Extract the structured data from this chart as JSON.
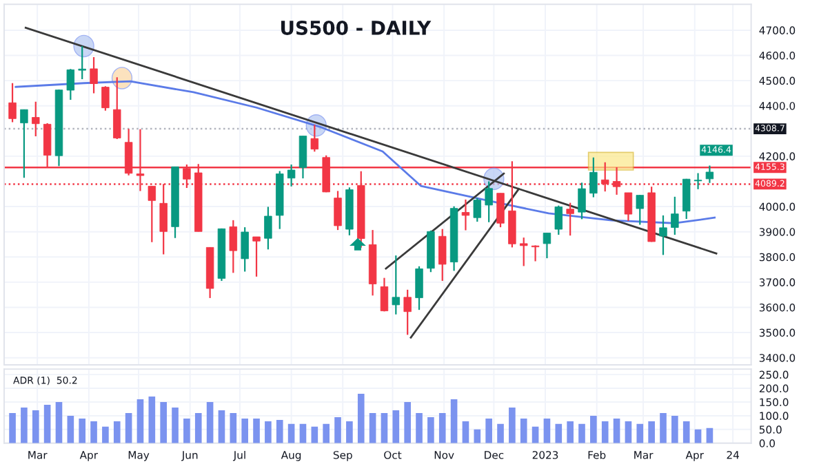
{
  "chart_data": [
    {
      "type": "candlestick",
      "title": "US500 - DAILY",
      "x": [
        "2022-02-14",
        "2022-02-21",
        "2022-02-28",
        "2022-03-07",
        "2022-03-14",
        "2022-03-21",
        "2022-03-28",
        "2022-04-04",
        "2022-04-11",
        "2022-04-18",
        "2022-04-25",
        "2022-05-02",
        "2022-05-09",
        "2022-05-16",
        "2022-05-23",
        "2022-05-30",
        "2022-06-06",
        "2022-06-13",
        "2022-06-20",
        "2022-06-27",
        "2022-07-04",
        "2022-07-11",
        "2022-07-18",
        "2022-07-25",
        "2022-08-01",
        "2022-08-08",
        "2022-08-15",
        "2022-08-22",
        "2022-08-29",
        "2022-09-05",
        "2022-09-12",
        "2022-09-19",
        "2022-09-26",
        "2022-10-03",
        "2022-10-10",
        "2022-10-17",
        "2022-10-24",
        "2022-10-31",
        "2022-11-07",
        "2022-11-14",
        "2022-11-21",
        "2022-11-28",
        "2022-12-05",
        "2022-12-12",
        "2022-12-19",
        "2022-12-26",
        "2023-01-02",
        "2023-01-09",
        "2023-01-16",
        "2023-01-23",
        "2023-01-30",
        "2023-02-06",
        "2023-02-13",
        "2023-02-20",
        "2023-02-27",
        "2023-03-06",
        "2023-03-13",
        "2023-03-20",
        "2023-03-27",
        "2023-04-03",
        "2023-04-10"
      ],
      "ohlc": [
        [
          4412,
          4490,
          4335,
          4349
        ],
        [
          4332,
          4385,
          4114,
          4385
        ],
        [
          4354,
          4416,
          4279,
          4329
        ],
        [
          4327,
          4331,
          4157,
          4204
        ],
        [
          4202,
          4465,
          4161,
          4463
        ],
        [
          4462,
          4546,
          4424,
          4543
        ],
        [
          4541,
          4637,
          4506,
          4546
        ],
        [
          4547,
          4593,
          4450,
          4488
        ],
        [
          4474,
          4478,
          4381,
          4392
        ],
        [
          4385,
          4513,
          4268,
          4272
        ],
        [
          4255,
          4308,
          4124,
          4132
        ],
        [
          4130,
          4307,
          4062,
          4123
        ],
        [
          4081,
          4081,
          3859,
          4024
        ],
        [
          4013,
          4090,
          3810,
          3901
        ],
        [
          3920,
          4159,
          3875,
          4158
        ],
        [
          4151,
          4167,
          4074,
          4109
        ],
        [
          4134,
          4169,
          3901,
          3901
        ],
        [
          3838,
          3838,
          3637,
          3675
        ],
        [
          3715,
          3913,
          3705,
          3912
        ],
        [
          3920,
          3946,
          3737,
          3825
        ],
        [
          3793,
          3918,
          3742,
          3899
        ],
        [
          3880,
          3880,
          3722,
          3863
        ],
        [
          3874,
          3999,
          3830,
          3962
        ],
        [
          3965,
          4141,
          3911,
          4130
        ],
        [
          4113,
          4167,
          4080,
          4145
        ],
        [
          4155,
          4280,
          4112,
          4280
        ],
        [
          4270,
          4325,
          4218,
          4228
        ],
        [
          4195,
          4203,
          4057,
          4058
        ],
        [
          4034,
          4062,
          3907,
          3924
        ],
        [
          3910,
          4076,
          3886,
          4067
        ],
        [
          4084,
          4140,
          3837,
          3873
        ],
        [
          3849,
          3907,
          3647,
          3693
        ],
        [
          3682,
          3717,
          3584,
          3586
        ],
        [
          3610,
          3806,
          3572,
          3640
        ],
        [
          3640,
          3670,
          3491,
          3583
        ],
        [
          3638,
          3763,
          3590,
          3753
        ],
        [
          3755,
          3905,
          3740,
          3901
        ],
        [
          3882,
          3911,
          3705,
          3771
        ],
        [
          3780,
          4001,
          3745,
          3993
        ],
        [
          3977,
          4028,
          3906,
          3965
        ],
        [
          3956,
          4034,
          3940,
          4026
        ],
        [
          4006,
          4100,
          3938,
          4072
        ],
        [
          4053,
          4053,
          3918,
          3934
        ],
        [
          3983,
          4180,
          3838,
          3852
        ],
        [
          3853,
          3877,
          3764,
          3845
        ],
        [
          3844,
          3846,
          3783,
          3840
        ],
        [
          3853,
          3895,
          3795,
          3895
        ],
        [
          3910,
          4004,
          3888,
          3999
        ],
        [
          3990,
          4015,
          3885,
          3972
        ],
        [
          3978,
          4095,
          3950,
          4071
        ],
        [
          4053,
          4195,
          4037,
          4136
        ],
        [
          4106,
          4176,
          4060,
          4090
        ],
        [
          4100,
          4156,
          4047,
          4079
        ],
        [
          4055,
          4055,
          3943,
          3970
        ],
        [
          3992,
          4046,
          3928,
          4045
        ],
        [
          4055,
          4079,
          3860,
          3861
        ],
        [
          3883,
          3965,
          3808,
          3916
        ],
        [
          3917,
          4039,
          3888,
          3971
        ],
        [
          3982,
          4110,
          3951,
          4109
        ],
        [
          4102,
          4133,
          4069,
          4105
        ],
        [
          4110,
          4163,
          4094,
          4137
        ]
      ],
      "colors": [
        "#f23645",
        "#089981",
        "#f23645",
        "#f23645",
        "#089981",
        "#089981",
        "#089981",
        "#f23645",
        "#f23645",
        "#f23645",
        "#f23645",
        "#f23645",
        "#f23645",
        "#f23645",
        "#089981",
        "#f23645",
        "#f23645",
        "#f23645",
        "#089981",
        "#f23645",
        "#089981",
        "#f23645",
        "#089981",
        "#089981",
        "#089981",
        "#089981",
        "#f23645",
        "#f23645",
        "#f23645",
        "#089981",
        "#f23645",
        "#f23645",
        "#f23645",
        "#089981",
        "#f23645",
        "#089981",
        "#089981",
        "#f23645",
        "#089981",
        "#f23645",
        "#089981",
        "#089981",
        "#f23645",
        "#f23645",
        "#f23645",
        "#f23645",
        "#089981",
        "#089981",
        "#f23645",
        "#089981",
        "#089981",
        "#f23645",
        "#f23645",
        "#f23645",
        "#089981",
        "#f23645",
        "#089981",
        "#089981",
        "#089981",
        "#089981",
        "#089981"
      ],
      "series": [
        {
          "type": "line",
          "color": "#5b7be8",
          "x": [
            "2022-02-16",
            "2022-03-29",
            "2022-04-26",
            "2022-06-03",
            "2022-07-11",
            "2022-08-18",
            "2022-09-25",
            "2022-10-18",
            "2022-11-25",
            "2023-01-03",
            "2023-02-10",
            "2023-03-20",
            "2023-04-13"
          ],
          "values": [
            4475,
            4490,
            4497,
            4454,
            4393,
            4317,
            4219,
            4082,
            4027,
            3973,
            3945,
            3934,
            3956
          ]
        },
        {
          "type": "line",
          "color": "#3a3a3a",
          "x": [
            "2022-02-22",
            "2023-04-14"
          ],
          "values": [
            4710,
            3814
          ]
        },
        {
          "type": "line",
          "color": "#3a3a3a",
          "x": [
            "2022-09-27",
            "2022-12-07"
          ],
          "values": [
            3754,
            4131
          ]
        },
        {
          "type": "line",
          "color": "#3a3a3a",
          "x": [
            "2022-10-12",
            "2022-12-16"
          ],
          "values": [
            3480,
            4070
          ]
        }
      ],
      "ref_lines": [
        {
          "axis": "y",
          "value": 4308.7,
          "label": "4308.7",
          "color": "#b2b5be",
          "line_style": "dotted"
        },
        {
          "axis": "y",
          "value": 4155.3,
          "label": "4155.3",
          "color": "#f23645",
          "line_style": "solid"
        },
        {
          "axis": "y",
          "value": 4089.2,
          "label": "4089.2",
          "color": "#f23645",
          "line_style": "dotted"
        }
      ],
      "annotations": [
        {
          "text": "4146.4",
          "x": "2023-04-14",
          "y": 4146.4
        }
      ],
      "xlim": [
        "2022-02-09",
        "2023-05-05"
      ],
      "xticks": [
        {
          "value": "2022-03-01",
          "label": null
        },
        {
          "value": "2022-04-01",
          "label": null
        },
        {
          "value": "2022-05-01",
          "label": null
        },
        {
          "value": "2022-06-01",
          "label": null
        },
        {
          "value": "2022-07-01",
          "label": null
        },
        {
          "value": "2022-08-01",
          "label": null
        },
        {
          "value": "2022-09-01",
          "label": null
        },
        {
          "value": "2022-10-01",
          "label": null
        },
        {
          "value": "2022-11-01",
          "label": null
        },
        {
          "value": "2022-12-01",
          "label": null
        },
        {
          "value": "2023-01-01",
          "label": null
        },
        {
          "value": "2023-02-01",
          "label": null
        },
        {
          "value": "2023-03-01",
          "label": null
        },
        {
          "value": "2023-04-01",
          "label": null
        },
        {
          "value": "2023-04-24",
          "label": null
        }
      ],
      "ylim": [
        3372,
        4803
      ],
      "yticks": [
        {
          "value": 3400,
          "label": "3400.0"
        },
        {
          "value": 3500,
          "label": "3500.0"
        },
        {
          "value": 3600,
          "label": "3600.0"
        },
        {
          "value": 3700,
          "label": "3700.0"
        },
        {
          "value": 3800,
          "label": "3800.0"
        },
        {
          "value": 3900,
          "label": "3900.0"
        },
        {
          "value": 4000,
          "label": "4000.0"
        },
        {
          "value": 4200,
          "label": "4200.0"
        },
        {
          "value": 4400,
          "label": "4400.0"
        },
        {
          "value": 4500,
          "label": "4500.0"
        },
        {
          "value": 4600,
          "label": "4600.0"
        },
        {
          "value": 4700,
          "label": "4700.0"
        }
      ],
      "grid": true,
      "tick_labels": "y"
    },
    {
      "type": "bar",
      "color": "#7b93ef",
      "x": [
        "2022-02-14",
        "2022-02-21",
        "2022-02-28",
        "2022-03-07",
        "2022-03-14",
        "2022-03-21",
        "2022-03-28",
        "2022-04-04",
        "2022-04-11",
        "2022-04-18",
        "2022-04-25",
        "2022-05-02",
        "2022-05-09",
        "2022-05-16",
        "2022-05-23",
        "2022-05-30",
        "2022-06-06",
        "2022-06-13",
        "2022-06-20",
        "2022-06-27",
        "2022-07-04",
        "2022-07-11",
        "2022-07-18",
        "2022-07-25",
        "2022-08-01",
        "2022-08-08",
        "2022-08-15",
        "2022-08-22",
        "2022-08-29",
        "2022-09-05",
        "2022-09-12",
        "2022-09-19",
        "2022-09-26",
        "2022-10-03",
        "2022-10-10",
        "2022-10-17",
        "2022-10-24",
        "2022-10-31",
        "2022-11-07",
        "2022-11-14",
        "2022-11-21",
        "2022-11-28",
        "2022-12-05",
        "2022-12-12",
        "2022-12-19",
        "2022-12-26",
        "2023-01-02",
        "2023-01-09",
        "2023-01-16",
        "2023-01-23",
        "2023-01-30",
        "2023-02-06",
        "2023-02-13",
        "2023-02-20",
        "2023-02-27",
        "2023-03-06",
        "2023-03-13",
        "2023-03-20",
        "2023-03-27",
        "2023-04-03",
        "2023-04-10"
      ],
      "values": [
        110,
        130,
        120,
        140,
        150,
        100,
        90,
        80,
        60,
        80,
        110,
        160,
        170,
        150,
        130,
        90,
        110,
        150,
        120,
        110,
        90,
        90,
        80,
        85,
        70,
        70,
        60,
        70,
        95,
        80,
        180,
        110,
        110,
        120,
        150,
        110,
        95,
        110,
        160,
        80,
        50,
        90,
        70,
        130,
        90,
        60,
        90,
        70,
        80,
        70,
        100,
        80,
        90,
        80,
        70,
        80,
        110,
        100,
        80,
        50,
        55
      ],
      "annotations": [
        "ADR (1)  50.2"
      ],
      "xlim": [
        "2022-02-09",
        "2023-05-05"
      ],
      "xticks": [
        {
          "value": "2022-03-01",
          "label": "Mar"
        },
        {
          "value": "2022-04-01",
          "label": "Apr"
        },
        {
          "value": "2022-05-01",
          "label": "May"
        },
        {
          "value": "2022-06-01",
          "label": "Jun"
        },
        {
          "value": "2022-07-01",
          "label": "Jul"
        },
        {
          "value": "2022-08-01",
          "label": "Aug"
        },
        {
          "value": "2022-09-01",
          "label": "Sep"
        },
        {
          "value": "2022-10-01",
          "label": "Oct"
        },
        {
          "value": "2022-11-01",
          "label": "Nov"
        },
        {
          "value": "2022-12-01",
          "label": "Dec"
        },
        {
          "value": "2023-01-01",
          "label": "2023"
        },
        {
          "value": "2023-02-01",
          "label": "Feb"
        },
        {
          "value": "2023-03-01",
          "label": "Mar"
        },
        {
          "value": "2023-04-01",
          "label": "Apr"
        },
        {
          "value": "2023-04-24",
          "label": "24"
        }
      ],
      "ylim": [
        0,
        270
      ],
      "yticks": [
        {
          "value": 0,
          "label": "0.0"
        },
        {
          "value": 50,
          "label": "50.0"
        },
        {
          "value": 100,
          "label": "100.0"
        },
        {
          "value": 150,
          "label": "150.0"
        },
        {
          "value": 200,
          "label": "200.0"
        },
        {
          "value": 250,
          "label": "250.0"
        }
      ],
      "grid": true
    }
  ]
}
